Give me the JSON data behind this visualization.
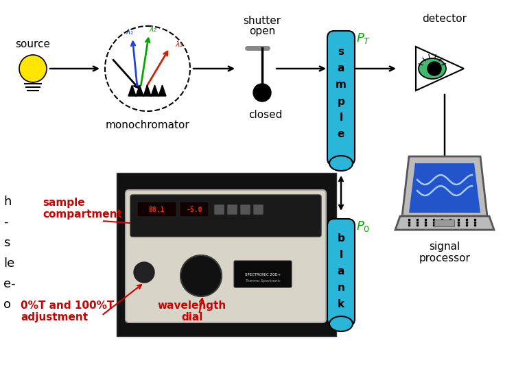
{
  "bg_color": "#ffffff",
  "red_color": "#cc0000",
  "green_color": "#00aa00",
  "cyan_color": "#29b6d8",
  "blue_color": "#0000cc",
  "source_label": "source",
  "mono_label": "monochromator",
  "detector_label": "detector",
  "signal_label": "signal\nprocessor",
  "sample_compartment": "sample\ncompartment",
  "zero_T": "0%T and 100%T\nadjustment",
  "wavelength_dial": "wavelength\ndial",
  "lambda1": "λ₁",
  "lambda2": "λ₂",
  "lambda3": "λ₃",
  "fig_w": 7.68,
  "fig_h": 5.32,
  "dpi": 100
}
